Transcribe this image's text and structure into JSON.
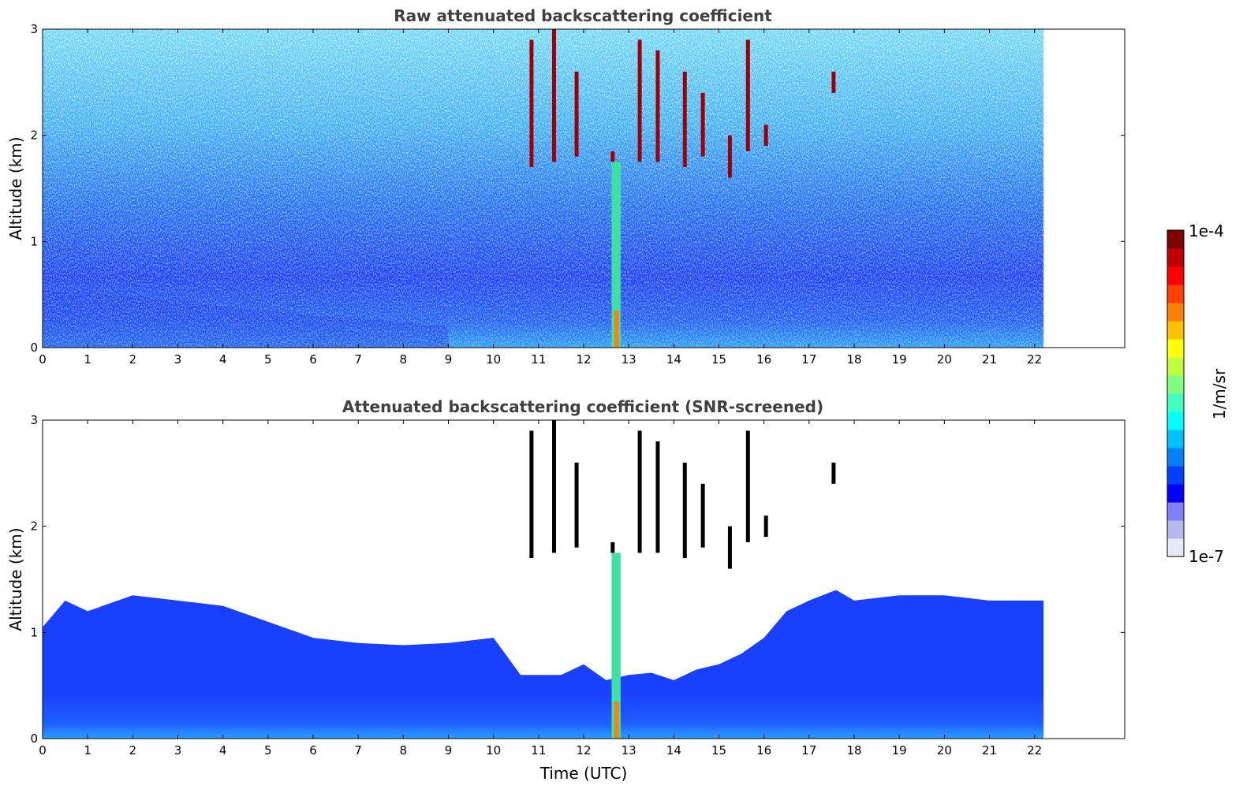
{
  "chart_data": [
    {
      "type": "heatmap",
      "title": "Raw attenuated backscattering coefficient",
      "xlabel": "",
      "ylabel": "Altitude (km)",
      "xlim": [
        0,
        24
      ],
      "ylim": [
        0,
        3
      ],
      "xticks": [
        "0",
        "1",
        "2",
        "3",
        "4",
        "5",
        "6",
        "7",
        "8",
        "9",
        "10",
        "11",
        "12",
        "13",
        "14",
        "15",
        "16",
        "17",
        "18",
        "19",
        "20",
        "21",
        "22"
      ],
      "yticks": [
        "0",
        "1",
        "2",
        "3"
      ],
      "data_extent_x": [
        0,
        22.2
      ],
      "grid": false
    },
    {
      "type": "heatmap",
      "title": "Attenuated backscattering coefficient (SNR-screened)",
      "xlabel": "Time (UTC)",
      "ylabel": "Altitude (km)",
      "xlim": [
        0,
        24
      ],
      "ylim": [
        0,
        3
      ],
      "xticks": [
        "0",
        "1",
        "2",
        "3",
        "4",
        "5",
        "6",
        "7",
        "8",
        "9",
        "10",
        "11",
        "12",
        "13",
        "14",
        "15",
        "16",
        "17",
        "18",
        "19",
        "20",
        "21",
        "22"
      ],
      "yticks": [
        "0",
        "1",
        "2",
        "3"
      ],
      "data_extent_x": [
        0,
        22.2
      ],
      "grid": false
    }
  ],
  "colorbar": {
    "min_label": "1e-7",
    "max_label": "1e-4",
    "unit": "1/m/sr",
    "colors": [
      "#e8e8f8",
      "#b8b8f0",
      "#8080ff",
      "#0000ff",
      "#0040ff",
      "#0080ff",
      "#00c0ff",
      "#00ffff",
      "#40ffc0",
      "#80ff80",
      "#c0ff40",
      "#ffff00",
      "#ffc000",
      "#ff8000",
      "#ff4000",
      "#ff0000",
      "#c00000",
      "#800000"
    ]
  }
}
